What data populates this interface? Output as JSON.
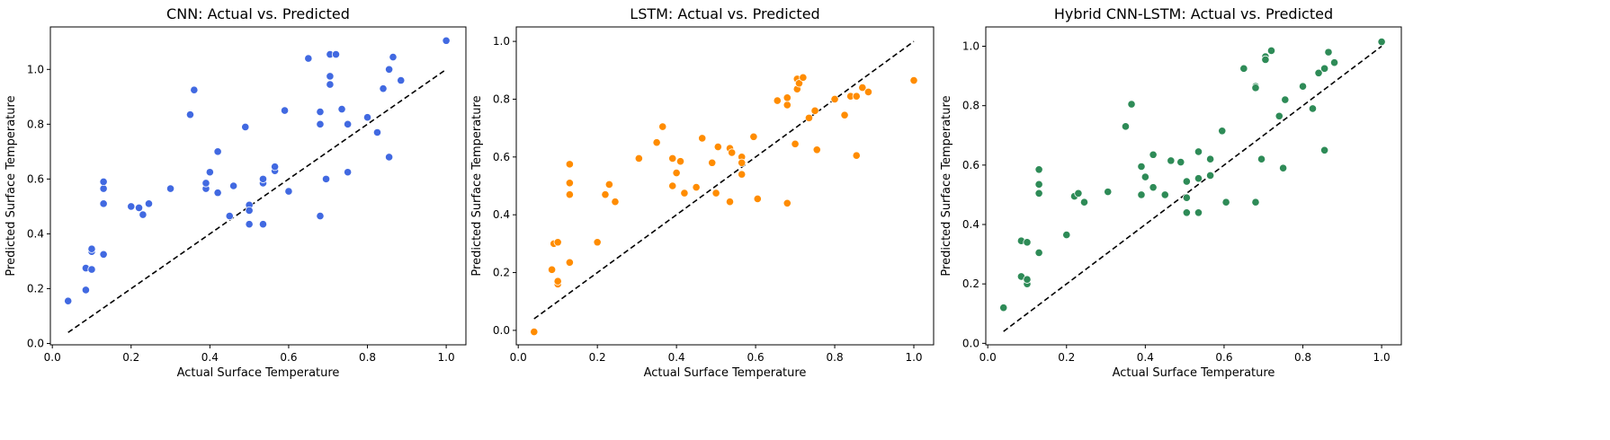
{
  "chart_data": [
    {
      "type": "scatter",
      "title": "CNN: Actual vs. Predicted",
      "xlabel": "Actual Surface Temperature",
      "ylabel": "Predicted Surface Temperature",
      "xlim": [
        -0.005,
        1.05
      ],
      "ylim": [
        -0.005,
        1.155
      ],
      "xticks": [
        0.0,
        0.2,
        0.4,
        0.6,
        0.8,
        1.0
      ],
      "xtick_labels": [
        "0.0",
        "0.2",
        "0.4",
        "0.6",
        "0.8",
        "1.0"
      ],
      "yticks": [
        0.0,
        0.2,
        0.4,
        0.6,
        0.8,
        1.0
      ],
      "ytick_labels": [
        "0.0",
        "0.2",
        "0.4",
        "0.6",
        "0.8",
        "1.0"
      ],
      "color": "#4169e1",
      "reference_line": {
        "x": [
          0.04,
          1.0
        ],
        "y": [
          0.04,
          1.0
        ],
        "style": "dashed",
        "color": "#000000"
      },
      "grid": false,
      "points": {
        "x": [
          0.04,
          0.085,
          0.085,
          0.1,
          0.1,
          0.1,
          0.13,
          0.13,
          0.13,
          0.13,
          0.2,
          0.22,
          0.23,
          0.245,
          0.3,
          0.35,
          0.36,
          0.39,
          0.39,
          0.4,
          0.42,
          0.42,
          0.45,
          0.46,
          0.49,
          0.5,
          0.5,
          0.5,
          0.535,
          0.535,
          0.535,
          0.565,
          0.565,
          0.59,
          0.6,
          0.65,
          0.68,
          0.68,
          0.68,
          0.695,
          0.705,
          0.705,
          0.705,
          0.72,
          0.735,
          0.75,
          0.75,
          0.8,
          0.825,
          0.84,
          0.855,
          0.855,
          0.865,
          0.885,
          1.0
        ],
        "y": [
          0.155,
          0.195,
          0.275,
          0.27,
          0.335,
          0.345,
          0.325,
          0.51,
          0.565,
          0.59,
          0.5,
          0.495,
          0.47,
          0.51,
          0.565,
          0.835,
          0.925,
          0.565,
          0.585,
          0.625,
          0.55,
          0.7,
          0.465,
          0.575,
          0.79,
          0.505,
          0.485,
          0.435,
          0.585,
          0.6,
          0.435,
          0.63,
          0.645,
          0.85,
          0.555,
          1.04,
          0.465,
          0.8,
          0.845,
          0.6,
          0.975,
          0.945,
          1.055,
          1.055,
          0.855,
          0.625,
          0.8,
          0.825,
          0.77,
          0.93,
          1.0,
          0.68,
          1.045,
          0.96,
          1.105
        ]
      }
    },
    {
      "type": "scatter",
      "title": "LSTM: Actual vs. Predicted",
      "xlabel": "Actual Surface Temperature",
      "ylabel": "Predicted Surface Temperature",
      "xlim": [
        -0.005,
        1.05
      ],
      "ylim": [
        -0.05,
        1.05
      ],
      "xticks": [
        0.0,
        0.2,
        0.4,
        0.6,
        0.8,
        1.0
      ],
      "xtick_labels": [
        "0.0",
        "0.2",
        "0.4",
        "0.6",
        "0.8",
        "1.0"
      ],
      "yticks": [
        0.0,
        0.2,
        0.4,
        0.6,
        0.8,
        1.0
      ],
      "ytick_labels": [
        "0.0",
        "0.2",
        "0.4",
        "0.6",
        "0.8",
        "1.0"
      ],
      "color": "#ff8c00",
      "reference_line": {
        "x": [
          0.04,
          1.0
        ],
        "y": [
          0.04,
          1.0
        ],
        "style": "dashed",
        "color": "#000000"
      },
      "grid": false,
      "points": {
        "x": [
          0.04,
          0.085,
          0.09,
          0.1,
          0.1,
          0.1,
          0.13,
          0.13,
          0.13,
          0.13,
          0.2,
          0.22,
          0.23,
          0.245,
          0.305,
          0.35,
          0.365,
          0.39,
          0.39,
          0.4,
          0.41,
          0.42,
          0.45,
          0.465,
          0.49,
          0.5,
          0.505,
          0.535,
          0.535,
          0.54,
          0.565,
          0.565,
          0.565,
          0.595,
          0.605,
          0.655,
          0.68,
          0.68,
          0.68,
          0.7,
          0.705,
          0.705,
          0.71,
          0.72,
          0.735,
          0.75,
          0.755,
          0.8,
          0.825,
          0.84,
          0.855,
          0.855,
          0.87,
          0.885,
          1.0
        ],
        "y": [
          -0.005,
          0.21,
          0.3,
          0.16,
          0.17,
          0.305,
          0.235,
          0.47,
          0.51,
          0.575,
          0.305,
          0.47,
          0.505,
          0.445,
          0.595,
          0.65,
          0.705,
          0.5,
          0.595,
          0.545,
          0.585,
          0.475,
          0.495,
          0.665,
          0.58,
          0.475,
          0.635,
          0.445,
          0.63,
          0.615,
          0.6,
          0.58,
          0.54,
          0.67,
          0.455,
          0.795,
          0.44,
          0.78,
          0.805,
          0.645,
          0.87,
          0.835,
          0.855,
          0.875,
          0.735,
          0.76,
          0.625,
          0.8,
          0.745,
          0.81,
          0.605,
          0.81,
          0.84,
          0.825,
          0.865
        ]
      }
    },
    {
      "type": "scatter",
      "title": "Hybrid CNN-LSTM: Actual vs. Predicted",
      "xlabel": "Actual Surface Temperature",
      "ylabel": "Predicted Surface Temperature",
      "xlim": [
        -0.005,
        1.05
      ],
      "ylim": [
        -0.005,
        1.065
      ],
      "xticks": [
        0.0,
        0.2,
        0.4,
        0.6,
        0.8,
        1.0
      ],
      "xtick_labels": [
        "0.0",
        "0.2",
        "0.4",
        "0.6",
        "0.8",
        "1.0"
      ],
      "yticks": [
        0.0,
        0.2,
        0.4,
        0.6,
        0.8,
        1.0
      ],
      "ytick_labels": [
        "0.0",
        "0.2",
        "0.4",
        "0.6",
        "0.8",
        "1.0"
      ],
      "color": "#2e8b57",
      "reference_line": {
        "x": [
          0.04,
          1.0
        ],
        "y": [
          0.04,
          1.0
        ],
        "style": "dashed",
        "color": "#000000"
      },
      "grid": false,
      "points": {
        "x": [
          0.04,
          0.085,
          0.085,
          0.1,
          0.1,
          0.1,
          0.13,
          0.13,
          0.13,
          0.13,
          0.2,
          0.22,
          0.23,
          0.245,
          0.305,
          0.35,
          0.365,
          0.39,
          0.39,
          0.4,
          0.42,
          0.42,
          0.45,
          0.465,
          0.49,
          0.505,
          0.505,
          0.505,
          0.535,
          0.535,
          0.535,
          0.565,
          0.565,
          0.595,
          0.605,
          0.65,
          0.68,
          0.68,
          0.68,
          0.695,
          0.705,
          0.705,
          0.72,
          0.74,
          0.75,
          0.755,
          0.8,
          0.825,
          0.84,
          0.855,
          0.855,
          0.865,
          0.88,
          1.0
        ],
        "y": [
          0.12,
          0.225,
          0.345,
          0.2,
          0.215,
          0.34,
          0.305,
          0.505,
          0.535,
          0.585,
          0.365,
          0.495,
          0.505,
          0.475,
          0.51,
          0.73,
          0.805,
          0.595,
          0.5,
          0.56,
          0.525,
          0.635,
          0.5,
          0.615,
          0.61,
          0.44,
          0.49,
          0.545,
          0.44,
          0.555,
          0.645,
          0.62,
          0.565,
          0.715,
          0.475,
          0.925,
          0.475,
          0.865,
          0.86,
          0.62,
          0.965,
          0.955,
          0.985,
          0.765,
          0.59,
          0.82,
          0.865,
          0.79,
          0.91,
          0.925,
          0.65,
          0.98,
          0.945,
          1.015
        ]
      }
    }
  ]
}
